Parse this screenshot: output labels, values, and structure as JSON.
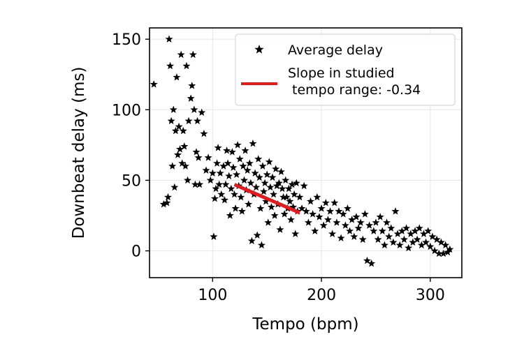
{
  "chart_data": {
    "type": "scatter",
    "xlabel": "Tempo (bpm)",
    "ylabel": "Downbeat delay (ms)",
    "xlim": [
      42,
      329
    ],
    "ylim": [
      -19,
      158
    ],
    "xticks": [
      100,
      200,
      300
    ],
    "yticks": [
      0,
      50,
      100,
      150
    ],
    "grid": true,
    "legend_position": "top-right",
    "colors": {
      "points": "#000000",
      "fit_line": "#e41a1c"
    },
    "series": [
      {
        "name": "Average delay",
        "marker": "star",
        "points": [
          [
            46,
            118
          ],
          [
            55,
            33
          ],
          [
            58,
            34
          ],
          [
            59,
            38
          ],
          [
            60,
            150
          ],
          [
            61,
            131
          ],
          [
            62,
            92
          ],
          [
            63,
            60
          ],
          [
            64,
            100
          ],
          [
            65,
            45
          ],
          [
            66,
            85
          ],
          [
            67,
            123
          ],
          [
            68,
            68
          ],
          [
            69,
            88
          ],
          [
            70,
            72
          ],
          [
            71,
            139
          ],
          [
            72,
            62
          ],
          [
            73,
            85
          ],
          [
            74,
            74
          ],
          [
            75,
            60
          ],
          [
            76,
            131
          ],
          [
            77,
            50
          ],
          [
            78,
            92
          ],
          [
            80,
            108
          ],
          [
            81,
            117
          ],
          [
            82,
            139
          ],
          [
            83,
            100
          ],
          [
            84,
            47
          ],
          [
            85,
            70
          ],
          [
            86,
            92
          ],
          [
            87,
            66
          ],
          [
            88,
            47
          ],
          [
            90,
            98
          ],
          [
            92,
            83
          ],
          [
            94,
            57
          ],
          [
            96,
            66
          ],
          [
            98,
            50
          ],
          [
            100,
            55
          ],
          [
            101,
            10
          ],
          [
            102,
            37
          ],
          [
            103,
            44
          ],
          [
            104,
            62
          ],
          [
            105,
            73
          ],
          [
            106,
            47
          ],
          [
            107,
            55
          ],
          [
            108,
            40
          ],
          [
            110,
            60
          ],
          [
            111,
            36
          ],
          [
            112,
            47
          ],
          [
            113,
            71
          ],
          [
            114,
            62
          ],
          [
            115,
            53
          ],
          [
            116,
            25
          ],
          [
            117,
            44
          ],
          [
            118,
            70
          ],
          [
            119,
            59
          ],
          [
            120,
            40
          ],
          [
            121,
            30
          ],
          [
            122,
            54
          ],
          [
            123,
            75
          ],
          [
            124,
            46
          ],
          [
            125,
            65
          ],
          [
            126,
            38
          ],
          [
            127,
            28
          ],
          [
            128,
            60
          ],
          [
            129,
            50
          ],
          [
            130,
            71
          ],
          [
            131,
            43
          ],
          [
            132,
            57
          ],
          [
            133,
            33
          ],
          [
            134,
            62
          ],
          [
            135,
            48
          ],
          [
            136,
            7
          ],
          [
            137,
            76
          ],
          [
            138,
            40
          ],
          [
            139,
            55
          ],
          [
            140,
            45
          ],
          [
            141,
            11
          ],
          [
            142,
            65
          ],
          [
            143,
            52
          ],
          [
            144,
            30
          ],
          [
            145,
            4
          ],
          [
            146,
            60
          ],
          [
            147,
            42
          ],
          [
            148,
            48
          ],
          [
            149,
            35
          ],
          [
            150,
            54
          ],
          [
            151,
            20
          ],
          [
            152,
            63
          ],
          [
            153,
            45
          ],
          [
            154,
            31
          ],
          [
            155,
            52
          ],
          [
            156,
            40
          ],
          [
            157,
            25
          ],
          [
            158,
            58
          ],
          [
            159,
            46
          ],
          [
            160,
            33
          ],
          [
            161,
            48
          ],
          [
            162,
            15
          ],
          [
            163,
            56
          ],
          [
            164,
            44
          ],
          [
            165,
            38
          ],
          [
            166,
            26
          ],
          [
            167,
            50
          ],
          [
            168,
            38
          ],
          [
            169,
            30
          ],
          [
            170,
            44
          ],
          [
            171,
            35
          ],
          [
            172,
            22
          ],
          [
            173,
            47
          ],
          [
            174,
            31
          ],
          [
            175,
            40
          ],
          [
            176,
            12
          ],
          [
            177,
            48
          ],
          [
            178,
            28
          ],
          [
            180,
            38
          ],
          [
            182,
            30
          ],
          [
            184,
            46
          ],
          [
            186,
            28
          ],
          [
            188,
            20
          ],
          [
            190,
            35
          ],
          [
            192,
            26
          ],
          [
            194,
            14
          ],
          [
            196,
            38
          ],
          [
            198,
            24
          ],
          [
            200,
            30
          ],
          [
            202,
            18
          ],
          [
            204,
            34
          ],
          [
            206,
            22
          ],
          [
            208,
            28
          ],
          [
            210,
            12
          ],
          [
            212,
            34
          ],
          [
            214,
            20
          ],
          [
            216,
            28
          ],
          [
            218,
            9
          ],
          [
            220,
            26
          ],
          [
            222,
            18
          ],
          [
            224,
            30
          ],
          [
            226,
            14
          ],
          [
            228,
            22
          ],
          [
            230,
            10
          ],
          [
            232,
            24
          ],
          [
            234,
            16
          ],
          [
            236,
            20
          ],
          [
            238,
            8
          ],
          [
            240,
            26
          ],
          [
            242,
            -7
          ],
          [
            244,
            18
          ],
          [
            246,
            -9
          ],
          [
            248,
            14
          ],
          [
            250,
            20
          ],
          [
            252,
            8
          ],
          [
            254,
            24
          ],
          [
            256,
            14
          ],
          [
            258,
            4
          ],
          [
            260,
            20
          ],
          [
            262,
            10
          ],
          [
            264,
            16
          ],
          [
            266,
            6
          ],
          [
            268,
            28
          ],
          [
            270,
            12
          ],
          [
            272,
            4
          ],
          [
            274,
            14
          ],
          [
            276,
            8
          ],
          [
            278,
            16
          ],
          [
            280,
            2
          ],
          [
            282,
            12
          ],
          [
            284,
            6
          ],
          [
            286,
            14
          ],
          [
            288,
            8
          ],
          [
            290,
            16
          ],
          [
            292,
            4
          ],
          [
            294,
            12
          ],
          [
            296,
            6
          ],
          [
            298,
            14
          ],
          [
            300,
            3
          ],
          [
            302,
            10
          ],
          [
            304,
            0
          ],
          [
            306,
            8
          ],
          [
            308,
            -2
          ],
          [
            310,
            6
          ],
          [
            312,
            -2
          ],
          [
            314,
            4
          ],
          [
            316,
            -1
          ],
          [
            318,
            1
          ]
        ]
      },
      {
        "name": "Slope in studied\n tempo range: -0.34",
        "type": "line",
        "points": [
          [
            120,
            47
          ],
          [
            180,
            27
          ]
        ]
      }
    ]
  }
}
